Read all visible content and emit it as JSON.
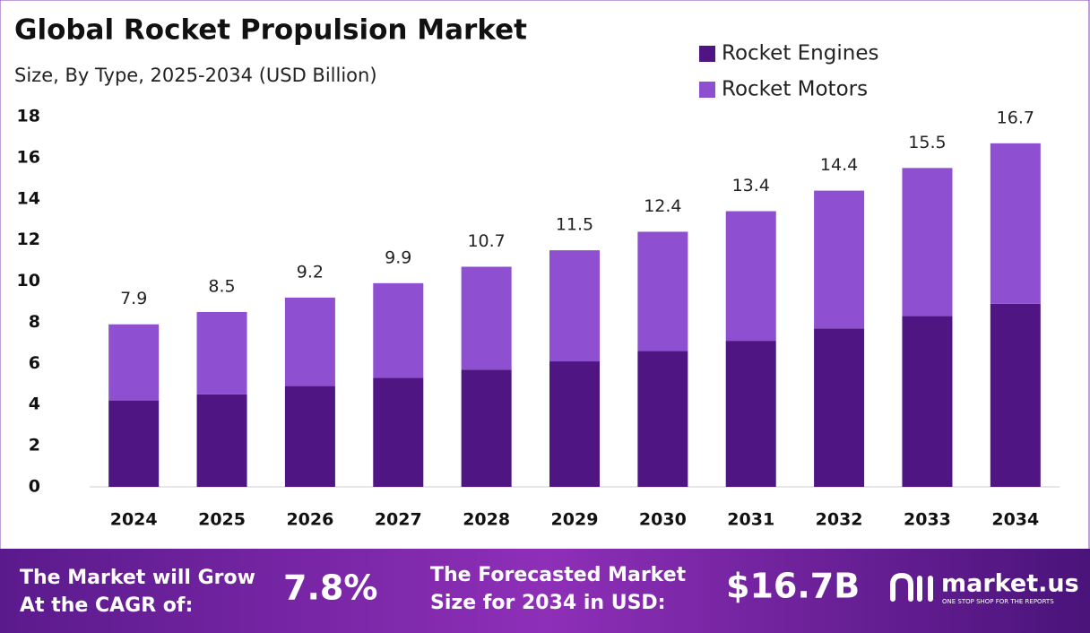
{
  "chart_data": {
    "type": "stacked_bar",
    "title": "Global Rocket Propulsion Market",
    "subtitle": "Size, By Type, 2025-2034 (USD Billion)",
    "categories": [
      "2024",
      "2025",
      "2026",
      "2027",
      "2028",
      "2029",
      "2030",
      "2031",
      "2032",
      "2033",
      "2034"
    ],
    "series": [
      {
        "name": "Rocket Engines",
        "color": "#4f1582",
        "values": [
          4.2,
          4.5,
          4.9,
          5.3,
          5.7,
          6.1,
          6.6,
          7.1,
          7.7,
          8.3,
          8.9
        ]
      },
      {
        "name": "Rocket Motors",
        "color": "#8e4fd0",
        "values": [
          3.7,
          4.0,
          4.3,
          4.6,
          5.0,
          5.4,
          5.8,
          6.3,
          6.7,
          7.2,
          7.8
        ]
      }
    ],
    "totals": [
      7.9,
      8.5,
      9.2,
      9.9,
      10.7,
      11.5,
      12.4,
      13.4,
      14.4,
      15.5,
      16.7
    ],
    "ylim": [
      0,
      18
    ],
    "yticks": [
      0,
      2,
      4,
      6,
      8,
      10,
      12,
      14,
      16,
      18
    ],
    "grid": false,
    "legend": "top-right"
  },
  "footer": {
    "cagr_text": [
      "The Market will Grow",
      "At the CAGR of:"
    ],
    "cagr_value": "7.8%",
    "forecast_text": [
      "The Forecasted Market",
      "Size for 2034 in USD:"
    ],
    "forecast_value": "$16.7B",
    "brand": "market.us",
    "tagline": "ONE STOP SHOP FOR THE REPORTS"
  }
}
